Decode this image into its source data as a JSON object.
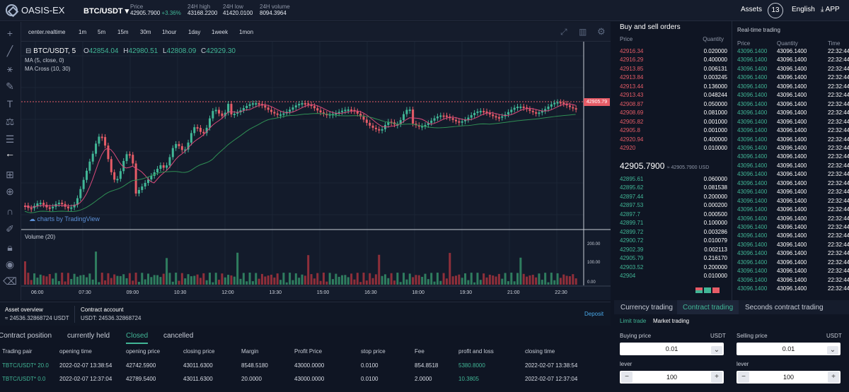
{
  "brand": {
    "logo": "OASIS-EX"
  },
  "header": {
    "pair": "BTC/USDT",
    "price_label": "Price",
    "price": "42905.7900",
    "change": "+3.36%",
    "high_label": "24H high",
    "high": "43168.2200",
    "low_label": "24H low",
    "low": "41420.0100",
    "volume_label": "24H volume",
    "volume": "8094.3964",
    "assets": "Assets",
    "badge": "13",
    "language": "English",
    "app": "APP"
  },
  "timeframes": [
    "center.realtime",
    "1m",
    "5m",
    "15m",
    "30m",
    "1hour",
    "1day",
    "1week",
    "1mon"
  ],
  "chart": {
    "symbol": "BTC/USDT, 5",
    "ohlc": {
      "o": "42854.04",
      "h": "42980.51",
      "l": "42808.09",
      "c": "42929.30"
    },
    "ma1": "MA (5, close, 0)",
    "ma2": "MA Cross (10, 30)",
    "watermark": "charts by TradingView",
    "volume_label": "Volume (20)",
    "price_tag": "42905.79",
    "vol_axis": [
      "200.00",
      "100.00",
      "0.00"
    ],
    "x_ticks": [
      "06:00",
      "07:30",
      "09:00",
      "10:30",
      "12:00",
      "13:30",
      "15:00",
      "16:30",
      "18:00",
      "19:30",
      "21:00",
      "22:30"
    ]
  },
  "orderbook": {
    "title": "Buy and sell orders",
    "price_col": "Price",
    "qty_col": "Quantity",
    "sells": [
      [
        "42916.34",
        "0.020000"
      ],
      [
        "42916.29",
        "0.400000"
      ],
      [
        "42913.85",
        "0.006131"
      ],
      [
        "42913.84",
        "0.003245"
      ],
      [
        "42913.44",
        "0.136000"
      ],
      [
        "42913.43",
        "0.048244"
      ],
      [
        "42908.87",
        "0.050000"
      ],
      [
        "42908.69",
        "0.081000"
      ],
      [
        "42905.82",
        "0.001000"
      ],
      [
        "42905.8",
        "0.001000"
      ],
      [
        "42920.94",
        "0.400000"
      ],
      [
        "42920",
        "0.010000"
      ]
    ],
    "mid_price": "42905.7900",
    "mid_usd": "≈ 42905.7900 USD",
    "buys": [
      [
        "42895.61",
        "0.060000"
      ],
      [
        "42895.62",
        "0.081538"
      ],
      [
        "42897.44",
        "0.200000"
      ],
      [
        "42897.53",
        "0.000200"
      ],
      [
        "42897.7",
        "0.000500"
      ],
      [
        "42899.71",
        "0.100000"
      ],
      [
        "42899.72",
        "0.003286"
      ],
      [
        "42900.72",
        "0.010079"
      ],
      [
        "42902.39",
        "0.002113"
      ],
      [
        "42905.79",
        "0.216170"
      ],
      [
        "42903.52",
        "0.200000"
      ],
      [
        "42904",
        "0.010000"
      ]
    ]
  },
  "trades": {
    "title": "Real-time trading",
    "price_col": "Price",
    "qty_col": "Quantity",
    "time_col": "Time",
    "price": "43096.1400",
    "qty": "43096.1400",
    "time": "22:32:44"
  },
  "account": {
    "overview_label": "Asset overview",
    "overview_value": "≈ 24536.32868724 USDT",
    "contract_label": "Contract account",
    "contract_value": "USDT: 24536.32868724",
    "deposit": "Deposit"
  },
  "position_tabs": [
    "Contract position",
    "currently held",
    "Closed",
    "cancelled"
  ],
  "table": {
    "headers": [
      "Trading pair",
      "opening time",
      "opening price",
      "closing price",
      "Margin",
      "Profit Price",
      "stop price",
      "Fee",
      "profit and loss",
      "closing time"
    ],
    "rows": [
      [
        "TBTC/USDT* 20.0",
        "2022-02-07 13:38:54",
        "42742.5900",
        "43011.6300",
        "8548.5180",
        "43000.0000",
        "0.0100",
        "854.8518",
        "5380.8000",
        "2022-02-07 13:38:54"
      ],
      [
        "TBTC/USDT* 0.0",
        "2022-02-07 12:37:04",
        "42789.5400",
        "43011.6300",
        "20.0000",
        "43000.0000",
        "0.0100",
        "2.0000",
        "10.3805",
        "2022-02-07 12:37:04"
      ]
    ]
  },
  "trade_panel": {
    "tabs": [
      "Currency trading",
      "Contract trading",
      "Seconds contract trading"
    ],
    "modes": [
      "Limit trade",
      "Market trading"
    ],
    "buy_label": "Buying price",
    "sell_label": "Selling price",
    "unit": "USDT",
    "buy_price": "0.01",
    "sell_price": "0.01",
    "lever_label": "lever",
    "lever_value": "100"
  },
  "colors": {
    "up": "#41b696",
    "down": "#e65c67",
    "bg": "#0f1523"
  }
}
